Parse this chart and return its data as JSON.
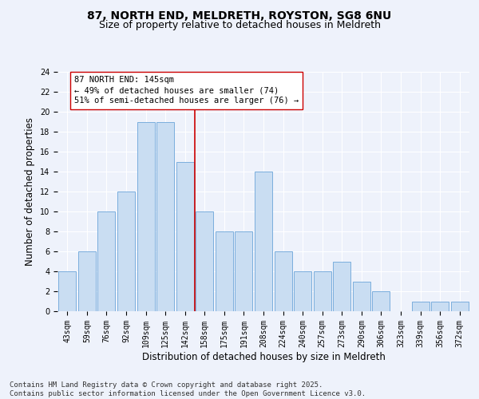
{
  "title1": "87, NORTH END, MELDRETH, ROYSTON, SG8 6NU",
  "title2": "Size of property relative to detached houses in Meldreth",
  "xlabel": "Distribution of detached houses by size in Meldreth",
  "ylabel": "Number of detached properties",
  "bar_labels": [
    "43sqm",
    "59sqm",
    "76sqm",
    "92sqm",
    "109sqm",
    "125sqm",
    "142sqm",
    "158sqm",
    "175sqm",
    "191sqm",
    "208sqm",
    "224sqm",
    "240sqm",
    "257sqm",
    "273sqm",
    "290sqm",
    "306sqm",
    "323sqm",
    "339sqm",
    "356sqm",
    "372sqm"
  ],
  "bar_values": [
    4,
    6,
    10,
    12,
    19,
    19,
    15,
    10,
    8,
    8,
    14,
    6,
    4,
    4,
    5,
    3,
    2,
    0,
    1,
    1,
    1
  ],
  "bar_color": "#c9ddf2",
  "bar_edgecolor": "#7aaedd",
  "ylim": [
    0,
    24
  ],
  "yticks": [
    0,
    2,
    4,
    6,
    8,
    10,
    12,
    14,
    16,
    18,
    20,
    22,
    24
  ],
  "vline_x": 6.5,
  "vline_color": "#cc0000",
  "annotation_line1": "87 NORTH END: 145sqm",
  "annotation_line2": "← 49% of detached houses are smaller (74)",
  "annotation_line3": "51% of semi-detached houses are larger (76) →",
  "annotation_box_color": "#ffffff",
  "annotation_box_edgecolor": "#cc0000",
  "footer_text": "Contains HM Land Registry data © Crown copyright and database right 2025.\nContains public sector information licensed under the Open Government Licence v3.0.",
  "background_color": "#eef2fb",
  "grid_color": "#ffffff",
  "title_fontsize": 10,
  "subtitle_fontsize": 9,
  "axis_label_fontsize": 8.5,
  "tick_fontsize": 7,
  "annotation_fontsize": 7.5,
  "footer_fontsize": 6.5
}
